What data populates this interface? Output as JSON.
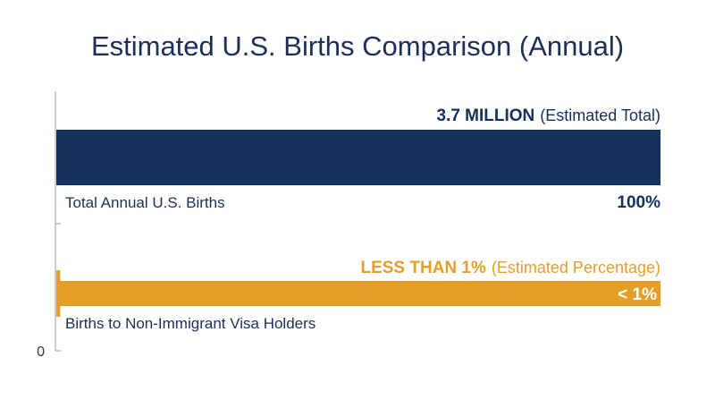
{
  "chart_data": {
    "type": "bar",
    "orientation": "horizontal",
    "title": "Estimated U.S. Births Comparison (Annual)",
    "categories": [
      "Total Annual U.S. Births",
      "Births to Non-Immigrant Visa Holders"
    ],
    "values": [
      100,
      0.5
    ],
    "value_labels": [
      {
        "strong": "3.7 MILLION",
        "light": "(Estimated Total)"
      },
      {
        "strong": "LESS THAN 1%",
        "light": "(Estimated Percentage)"
      }
    ],
    "percent_labels": [
      "100%",
      "< 1%"
    ],
    "xlim": [
      0,
      100
    ],
    "x_tick_labels": [
      "0"
    ],
    "colors": [
      "#15305b",
      "#e59e27"
    ],
    "grid": false
  }
}
